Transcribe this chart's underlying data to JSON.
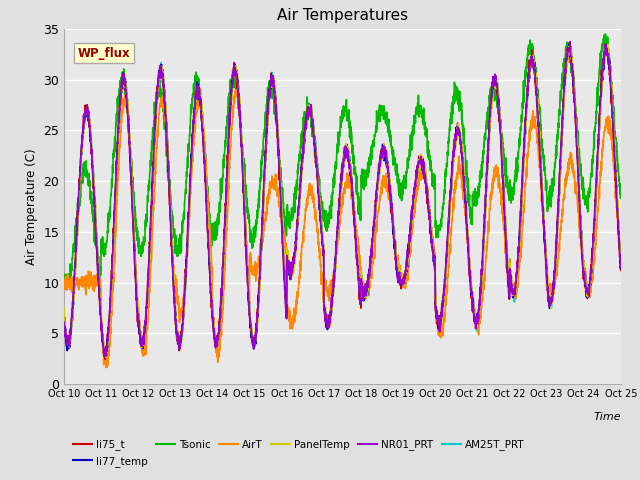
{
  "title": "Air Temperatures",
  "ylabel": "Air Temperature (C)",
  "xlabel": "Time",
  "ylim": [
    0,
    35
  ],
  "xlim": [
    0,
    15
  ],
  "ytick_values": [
    0,
    5,
    10,
    15,
    20,
    25,
    30,
    35
  ],
  "xtick_positions": [
    0,
    1,
    2,
    3,
    4,
    5,
    6,
    7,
    8,
    9,
    10,
    11,
    12,
    13,
    14,
    15
  ],
  "xtick_labels": [
    "Oct 10",
    "Oct 11",
    "Oct 12",
    "Oct 13",
    "Oct 14",
    "Oct 15",
    "Oct 16",
    "Oct 17",
    "Oct 18",
    "Oct 19",
    "Oct 20",
    "Oct 21",
    "Oct 22",
    "Oct 23",
    "Oct 24",
    "Oct 25"
  ],
  "fig_bg_color": "#e0e0e0",
  "plot_bg_color": "#e8e8e8",
  "grid_color": "#ffffff",
  "wp_flux_label": "WP_flux",
  "wp_flux_bg": "#ffffcc",
  "wp_flux_border": "#aaaaaa",
  "wp_flux_text_color": "#990000",
  "series": {
    "li75_t": {
      "color": "#cc0000",
      "lw": 1.2,
      "zorder": 5
    },
    "li77_temp": {
      "color": "#0000cc",
      "lw": 1.2,
      "zorder": 6
    },
    "Tsonic": {
      "color": "#00bb00",
      "lw": 1.2,
      "zorder": 3
    },
    "AirT": {
      "color": "#ff8800",
      "lw": 1.2,
      "zorder": 4
    },
    "PanelTemp": {
      "color": "#cccc00",
      "lw": 1.2,
      "zorder": 7
    },
    "NR01_PRT": {
      "color": "#9900cc",
      "lw": 1.2,
      "zorder": 8
    },
    "AM25T_PRT": {
      "color": "#00cccc",
      "lw": 1.2,
      "zorder": 2
    }
  },
  "legend_order": [
    "li75_t",
    "li77_temp",
    "Tsonic",
    "AirT",
    "PanelTemp",
    "NR01_PRT",
    "AM25T_PRT"
  ]
}
